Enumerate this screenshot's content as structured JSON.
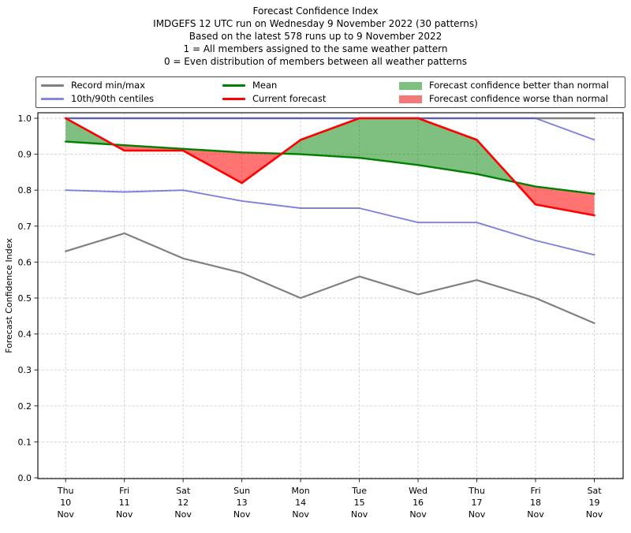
{
  "chart_data": {
    "type": "line",
    "title": "Forecast Confidence Index",
    "subtitle_lines": [
      "IMDGEFS 12 UTC run on Wednesday 9 November 2022 (30 patterns)",
      "Based on the latest 578 runs up to 9 November 2022",
      "1 = All members assigned to the same weather pattern",
      "0 = Even distribution of members between all weather patterns"
    ],
    "ylabel": "Forecast Confidence Index",
    "ylim": [
      0.0,
      1.0
    ],
    "yticks": [
      0.0,
      0.1,
      0.2,
      0.3,
      0.4,
      0.5,
      0.6,
      0.7,
      0.8,
      0.9,
      1.0
    ],
    "grid": true,
    "grid_color": "#cfcfcf",
    "axis_color": "#262626",
    "legend_position": "top",
    "x_labels": [
      {
        "dow": "Thu",
        "date": "10",
        "month": "Nov"
      },
      {
        "dow": "Fri",
        "date": "11",
        "month": "Nov"
      },
      {
        "dow": "Sat",
        "date": "12",
        "month": "Nov"
      },
      {
        "dow": "Sun",
        "date": "13",
        "month": "Nov"
      },
      {
        "dow": "Mon",
        "date": "14",
        "month": "Nov"
      },
      {
        "dow": "Tue",
        "date": "15",
        "month": "Nov"
      },
      {
        "dow": "Wed",
        "date": "16",
        "month": "Nov"
      },
      {
        "dow": "Thu",
        "date": "17",
        "month": "Nov"
      },
      {
        "dow": "Fri",
        "date": "18",
        "month": "Nov"
      },
      {
        "dow": "Sat",
        "date": "19",
        "month": "Nov"
      }
    ],
    "series": [
      {
        "name": "Record max",
        "color": "#808080",
        "values": [
          1.0,
          1.0,
          1.0,
          1.0,
          1.0,
          1.0,
          1.0,
          1.0,
          1.0,
          1.0
        ]
      },
      {
        "name": "Record min",
        "color": "#808080",
        "values": [
          0.63,
          0.68,
          0.61,
          0.57,
          0.5,
          0.56,
          0.51,
          0.55,
          0.5,
          0.43
        ]
      },
      {
        "name": "90th centile",
        "color": "#5050d0",
        "values": [
          1.0,
          1.0,
          1.0,
          1.0,
          1.0,
          1.0,
          1.0,
          1.0,
          1.0,
          0.94
        ]
      },
      {
        "name": "10th centile",
        "color": "#5050d0",
        "values": [
          0.8,
          0.795,
          0.8,
          0.77,
          0.75,
          0.75,
          0.71,
          0.71,
          0.66,
          0.62
        ]
      },
      {
        "name": "Mean",
        "color": "#008000",
        "values": [
          0.935,
          0.925,
          0.915,
          0.905,
          0.9,
          0.89,
          0.87,
          0.845,
          0.81,
          0.79
        ]
      },
      {
        "name": "Current forecast",
        "color": "#ff0000",
        "values": [
          1.0,
          0.91,
          0.91,
          0.82,
          0.94,
          1.0,
          1.0,
          0.94,
          0.76,
          0.73
        ]
      }
    ],
    "fills": {
      "better": {
        "label": "Forecast confidence better than normal",
        "color": "rgba(0,128,0,0.5)",
        "rule": "current above mean"
      },
      "worse": {
        "label": "Forecast confidence worse than normal",
        "color": "rgba(255,0,0,0.55)",
        "rule": "current below mean"
      }
    }
  },
  "legend": {
    "items": [
      {
        "id": "record-minmax",
        "swatch": "line",
        "color": "#808080",
        "label": "Record min/max"
      },
      {
        "id": "centiles",
        "swatch": "line",
        "color": "#8585e0",
        "label": "10th/90th centiles"
      },
      {
        "id": "mean",
        "swatch": "line",
        "color": "#008000",
        "label": "Mean"
      },
      {
        "id": "current-forecast",
        "swatch": "line",
        "color": "#ff0000",
        "label": "Current forecast"
      },
      {
        "id": "confidence-better",
        "swatch": "patch",
        "color": "#7fbf7f",
        "label": "Forecast confidence better than normal"
      },
      {
        "id": "confidence-worse",
        "swatch": "patch",
        "color": "#f57878",
        "label": "Forecast confidence worse than normal"
      }
    ]
  }
}
